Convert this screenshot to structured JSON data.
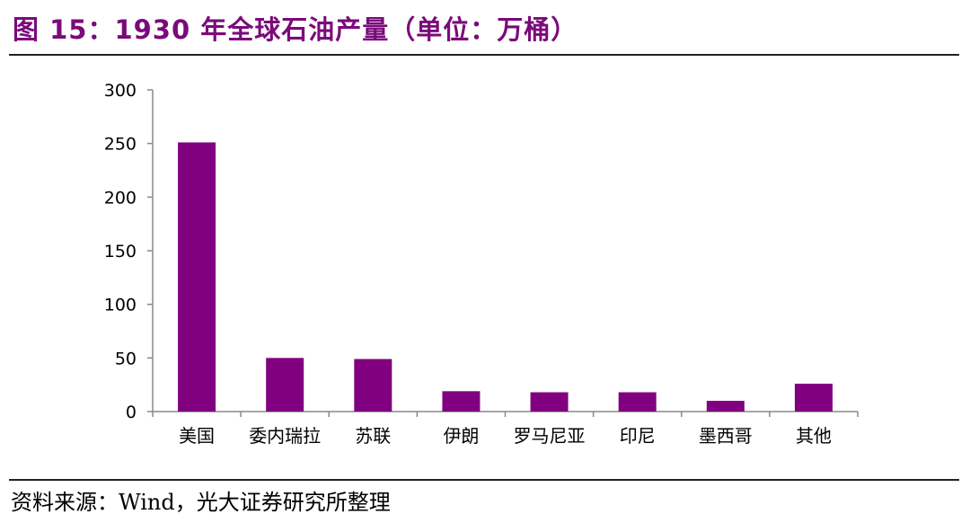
{
  "header": {
    "title": "图 15：1930 年全球石油产量（单位：万桶）"
  },
  "footer": {
    "source": "资料来源：Wind，光大证券研究所整理"
  },
  "chart_data": {
    "type": "bar",
    "title": "图 15：1930 年全球石油产量（单位：万桶）",
    "xlabel": "",
    "ylabel": "",
    "categories": [
      "美国",
      "委内瑞拉",
      "苏联",
      "伊朗",
      "罗马尼亚",
      "印尼",
      "墨西哥",
      "其他"
    ],
    "values": [
      251,
      50,
      49,
      19,
      18,
      18,
      10,
      26
    ],
    "ylim": [
      0,
      300
    ],
    "yticks": [
      0,
      50,
      100,
      150,
      200,
      250,
      300
    ],
    "grid": false,
    "legend": "none",
    "colors": {
      "bar": "#800080",
      "axis": "#888888"
    }
  }
}
